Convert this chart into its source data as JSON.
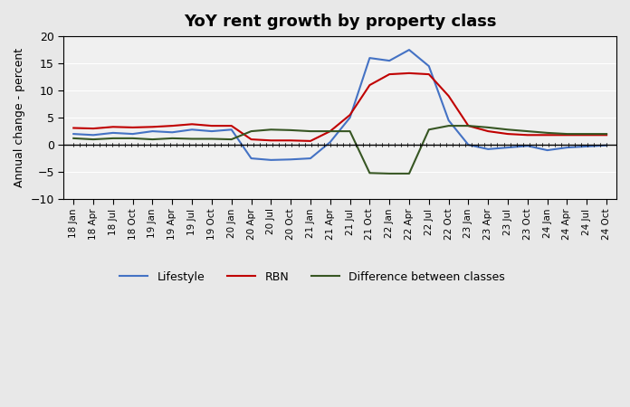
{
  "title": "YoY rent growth by property class",
  "ylabel": "Annual change - percent",
  "ylim": [
    -10,
    20
  ],
  "yticks": [
    -10,
    -5,
    0,
    5,
    10,
    15,
    20
  ],
  "background_color": "#e8e8e8",
  "plot_bg_color": "#f0f0f0",
  "line_colors": {
    "lifestyle": "#4472C4",
    "rbn": "#C00000",
    "diff": "#375623"
  },
  "legend_labels": [
    "Lifestyle",
    "RBN",
    "Difference between classes"
  ],
  "x_labels": [
    "18 Jan",
    "18 Apr",
    "18 Jul",
    "18 Oct",
    "19 Jan",
    "19 Apr",
    "19 Jul",
    "19 Oct",
    "20 Jan",
    "20 Apr",
    "20 Jul",
    "20 Oct",
    "21 Jan",
    "21 Apr",
    "21 Jul",
    "21 Oct",
    "22 Jan",
    "22 Apr",
    "22 Jul",
    "22 Oct",
    "23 Jan",
    "23 Apr",
    "23 Jul",
    "23 Oct",
    "24 Jan",
    "24 Apr",
    "24 Jul",
    "24 Oct"
  ],
  "lifestyle": [
    2.0,
    1.8,
    2.2,
    2.0,
    2.5,
    2.3,
    2.8,
    2.5,
    2.8,
    -2.5,
    -2.8,
    -2.7,
    -2.5,
    0.5,
    5.0,
    16.0,
    15.5,
    17.5,
    14.5,
    4.5,
    0.0,
    -0.8,
    -0.5,
    -0.2,
    -1.0,
    -0.5,
    -0.3,
    -0.1
  ],
  "rbn": [
    3.1,
    3.0,
    3.3,
    3.2,
    3.3,
    3.5,
    3.8,
    3.5,
    3.5,
    1.0,
    0.8,
    0.8,
    0.7,
    2.5,
    5.5,
    11.0,
    13.0,
    13.2,
    13.0,
    9.0,
    3.5,
    2.5,
    2.0,
    1.8,
    1.8,
    1.8,
    1.8,
    1.8
  ],
  "diff": [
    1.2,
    1.0,
    1.2,
    1.2,
    1.0,
    1.2,
    1.1,
    1.1,
    1.0,
    2.5,
    2.8,
    2.7,
    2.5,
    2.5,
    2.5,
    -5.2,
    -5.3,
    -5.3,
    2.8,
    3.5,
    3.5,
    3.2,
    2.8,
    2.5,
    2.2,
    2.0,
    2.0,
    2.0
  ]
}
